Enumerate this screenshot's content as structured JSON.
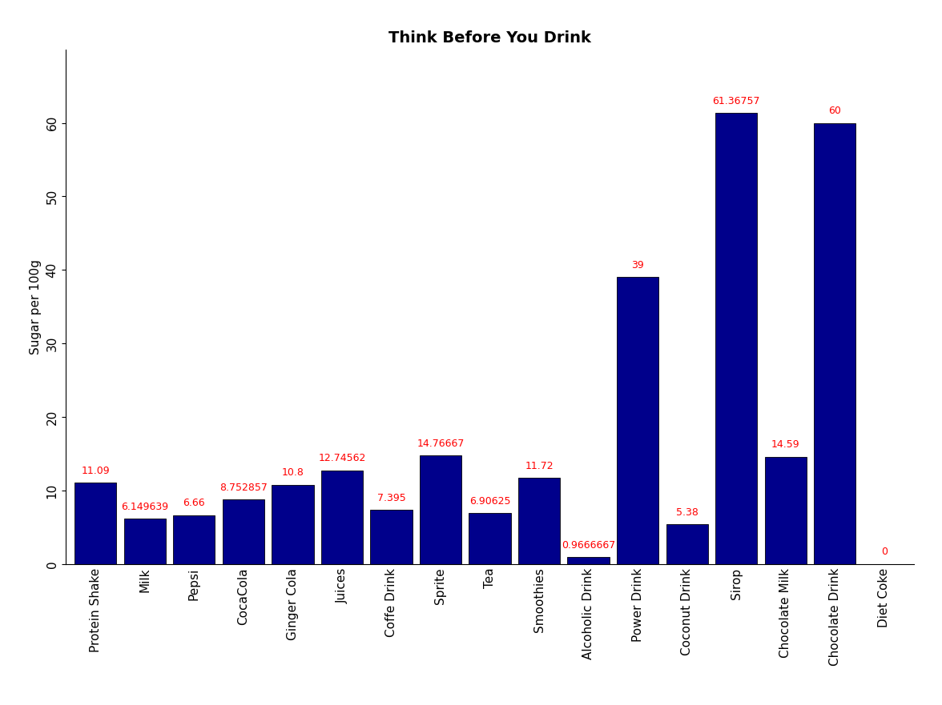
{
  "chart_data": {
    "type": "bar",
    "title": "Think Before You Drink",
    "y_label": "Sugar per 100g",
    "categories": [
      "Protein Shake",
      "Milk",
      "Pepsi",
      "CocaCola",
      "Ginger Cola",
      "Juices",
      "Coffe Drink",
      "Sprite",
      "Tea",
      "Smoothies",
      "Alcoholic Drink",
      "Power Drink",
      "Coconut Drink",
      "Sirop",
      "Chocolate Milk",
      "Chocolate Drink",
      "Diet Coke"
    ],
    "values": [
      11.09,
      6.149639,
      6.66,
      8.752857,
      10.8,
      12.74562,
      7.395,
      14.76667,
      6.90625,
      11.72,
      0.9666667,
      39,
      5.38,
      61.36757,
      14.59,
      60,
      0
    ],
    "color": "#00008b",
    "label_color": "#ff0000",
    "ylim": [
      0,
      70
    ],
    "yticks": [
      0,
      10,
      20,
      30,
      40,
      50,
      60
    ],
    "data_labels": true
  }
}
